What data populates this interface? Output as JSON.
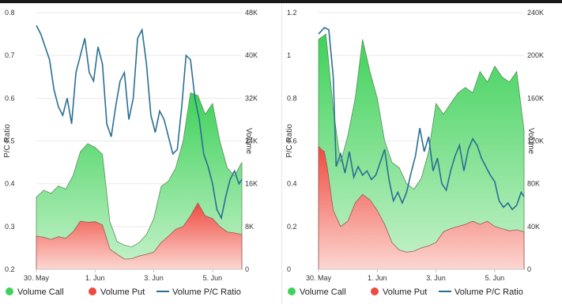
{
  "colors": {
    "call_top": "#3fd15a",
    "call_bottom": "#c6f2cb",
    "put_top": "#ee4a3f",
    "put_bottom": "#fcd7d2",
    "ratio_line": "#2a6f93"
  },
  "legend": {
    "call": "Volume Call",
    "put": "Volume Put",
    "ratio": "Volume P/C Ratio"
  },
  "chart_data": [
    {
      "type": "area",
      "title": "",
      "xlabel": "",
      "ylabel_left": "P/C Ratio",
      "ylabel_right": "Volume",
      "x_ticks": [
        "30. May",
        "1. Jun",
        "3. Jun",
        "5. Jun"
      ],
      "y_left_ticks": [
        "0.2",
        "0.3",
        "0.4",
        "0.5",
        "0.6",
        "0.7",
        "0.8"
      ],
      "y_right_ticks": [
        "0",
        "8K",
        "16K",
        "24K",
        "32K",
        "40K",
        "48K"
      ],
      "ylim_left": [
        0.2,
        0.8
      ],
      "ylim_right": [
        0,
        48000
      ],
      "x_range_days": [
        0,
        7.0
      ],
      "series": [
        {
          "name": "Volume Call",
          "points": [
            [
              0,
              13500
            ],
            [
              0.25,
              14800
            ],
            [
              0.5,
              14200
            ],
            [
              0.75,
              15600
            ],
            [
              1.0,
              15000
            ],
            [
              1.25,
              17500
            ],
            [
              1.5,
              22000
            ],
            [
              1.75,
              23500
            ],
            [
              2.0,
              22800
            ],
            [
              2.25,
              21500
            ],
            [
              2.5,
              9000
            ],
            [
              2.75,
              5200
            ],
            [
              3.0,
              4500
            ],
            [
              3.25,
              4200
            ],
            [
              3.5,
              5000
            ],
            [
              3.75,
              6500
            ],
            [
              4.0,
              9500
            ],
            [
              4.25,
              15500
            ],
            [
              4.5,
              16500
            ],
            [
              4.75,
              19000
            ],
            [
              5.0,
              24000
            ],
            [
              5.25,
              33000
            ],
            [
              5.5,
              32500
            ],
            [
              5.75,
              29000
            ],
            [
              6.0,
              31000
            ],
            [
              6.25,
              24000
            ],
            [
              6.5,
              19000
            ],
            [
              6.75,
              17500
            ],
            [
              7.0,
              20000
            ]
          ]
        },
        {
          "name": "Volume Put",
          "points": [
            [
              0,
              6200
            ],
            [
              0.25,
              6000
            ],
            [
              0.5,
              5600
            ],
            [
              0.75,
              6100
            ],
            [
              1.0,
              5800
            ],
            [
              1.25,
              7000
            ],
            [
              1.5,
              9000
            ],
            [
              1.75,
              8800
            ],
            [
              2.0,
              8900
            ],
            [
              2.25,
              8300
            ],
            [
              2.5,
              3800
            ],
            [
              2.75,
              2800
            ],
            [
              3.0,
              1900
            ],
            [
              3.25,
              2000
            ],
            [
              3.5,
              2500
            ],
            [
              3.75,
              2800
            ],
            [
              4.0,
              3200
            ],
            [
              4.25,
              5000
            ],
            [
              4.5,
              6200
            ],
            [
              4.75,
              7500
            ],
            [
              5.0,
              8000
            ],
            [
              5.25,
              10000
            ],
            [
              5.5,
              12400
            ],
            [
              5.75,
              10000
            ],
            [
              6.0,
              9500
            ],
            [
              6.25,
              8000
            ],
            [
              6.5,
              7000
            ],
            [
              6.75,
              6800
            ],
            [
              7.0,
              6500
            ]
          ]
        },
        {
          "name": "Volume P/C Ratio",
          "points": [
            [
              0,
              0.77
            ],
            [
              0.15,
              0.75
            ],
            [
              0.3,
              0.72
            ],
            [
              0.45,
              0.69
            ],
            [
              0.6,
              0.62
            ],
            [
              0.75,
              0.58
            ],
            [
              0.9,
              0.56
            ],
            [
              1.05,
              0.6
            ],
            [
              1.2,
              0.54
            ],
            [
              1.35,
              0.66
            ],
            [
              1.5,
              0.7
            ],
            [
              1.65,
              0.74
            ],
            [
              1.8,
              0.66
            ],
            [
              1.95,
              0.64
            ],
            [
              2.1,
              0.72
            ],
            [
              2.25,
              0.68
            ],
            [
              2.4,
              0.54
            ],
            [
              2.55,
              0.51
            ],
            [
              2.7,
              0.58
            ],
            [
              2.85,
              0.64
            ],
            [
              3.0,
              0.66
            ],
            [
              3.15,
              0.55
            ],
            [
              3.3,
              0.6
            ],
            [
              3.45,
              0.74
            ],
            [
              3.6,
              0.76
            ],
            [
              3.75,
              0.68
            ],
            [
              3.9,
              0.56
            ],
            [
              4.05,
              0.52
            ],
            [
              4.2,
              0.57
            ],
            [
              4.35,
              0.55
            ],
            [
              4.5,
              0.51
            ],
            [
              4.65,
              0.47
            ],
            [
              4.8,
              0.48
            ],
            [
              4.95,
              0.58
            ],
            [
              5.1,
              0.7
            ],
            [
              5.25,
              0.69
            ],
            [
              5.4,
              0.6
            ],
            [
              5.55,
              0.55
            ],
            [
              5.7,
              0.47
            ],
            [
              5.85,
              0.44
            ],
            [
              6.0,
              0.4
            ],
            [
              6.15,
              0.34
            ],
            [
              6.3,
              0.32
            ],
            [
              6.45,
              0.37
            ],
            [
              6.6,
              0.41
            ],
            [
              6.75,
              0.43
            ],
            [
              6.9,
              0.4
            ],
            [
              7.0,
              0.41
            ]
          ]
        }
      ]
    },
    {
      "type": "area",
      "title": "",
      "xlabel": "",
      "ylabel_left": "P/C Ratio",
      "ylabel_right": "Volume",
      "x_ticks": [
        "30. May",
        "1. Jun",
        "3. Jun",
        "5. Jun"
      ],
      "y_left_ticks": [
        "0",
        "0.2",
        "0.4",
        "0.6",
        "0.8",
        "1",
        "1.2"
      ],
      "y_right_ticks": [
        "0",
        "40K",
        "80K",
        "120K",
        "160K",
        "200K",
        "240K"
      ],
      "ylim_left": [
        0,
        1.2
      ],
      "ylim_right": [
        0,
        240000
      ],
      "x_range_days": [
        0,
        7.0
      ],
      "series": [
        {
          "name": "Volume Call",
          "points": [
            [
              0,
              215000
            ],
            [
              0.25,
              220000
            ],
            [
              0.5,
              150000
            ],
            [
              0.75,
              100000
            ],
            [
              1.0,
              125000
            ],
            [
              1.25,
              160000
            ],
            [
              1.5,
              215000
            ],
            [
              1.75,
              185000
            ],
            [
              2.0,
              160000
            ],
            [
              2.25,
              120000
            ],
            [
              2.5,
              100000
            ],
            [
              2.75,
              95000
            ],
            [
              3.0,
              80000
            ],
            [
              3.25,
              75000
            ],
            [
              3.5,
              85000
            ],
            [
              3.75,
              110000
            ],
            [
              4.0,
              155000
            ],
            [
              4.25,
              145000
            ],
            [
              4.5,
              155000
            ],
            [
              4.75,
              165000
            ],
            [
              5.0,
              170000
            ],
            [
              5.25,
              165000
            ],
            [
              5.5,
              185000
            ],
            [
              5.75,
              175000
            ],
            [
              6.0,
              190000
            ],
            [
              6.25,
              180000
            ],
            [
              6.5,
              175000
            ],
            [
              6.75,
              185000
            ],
            [
              7.0,
              130000
            ]
          ]
        },
        {
          "name": "Volume Put",
          "points": [
            [
              0,
              115000
            ],
            [
              0.1,
              112000
            ],
            [
              0.2,
              110000
            ],
            [
              0.3,
              95000
            ],
            [
              0.5,
              55000
            ],
            [
              0.75,
              40000
            ],
            [
              1.0,
              45000
            ],
            [
              1.25,
              62000
            ],
            [
              1.5,
              70000
            ],
            [
              1.75,
              65000
            ],
            [
              2.0,
              55000
            ],
            [
              2.25,
              42000
            ],
            [
              2.5,
              25000
            ],
            [
              2.75,
              18000
            ],
            [
              3.0,
              16000
            ],
            [
              3.25,
              17000
            ],
            [
              3.5,
              20000
            ],
            [
              3.75,
              22000
            ],
            [
              4.0,
              25000
            ],
            [
              4.25,
              35000
            ],
            [
              4.5,
              38000
            ],
            [
              4.75,
              40000
            ],
            [
              5.0,
              42000
            ],
            [
              5.25,
              45000
            ],
            [
              5.5,
              42000
            ],
            [
              5.75,
              45000
            ],
            [
              6.0,
              40000
            ],
            [
              6.25,
              38000
            ],
            [
              6.5,
              36000
            ],
            [
              6.75,
              37000
            ],
            [
              7.0,
              35000
            ]
          ]
        },
        {
          "name": "Volume P/C Ratio",
          "points": [
            [
              0,
              1.1
            ],
            [
              0.2,
              1.13
            ],
            [
              0.35,
              1.12
            ],
            [
              0.5,
              0.9
            ],
            [
              0.6,
              0.48
            ],
            [
              0.75,
              0.54
            ],
            [
              0.9,
              0.45
            ],
            [
              1.05,
              0.55
            ],
            [
              1.2,
              0.43
            ],
            [
              1.35,
              0.48
            ],
            [
              1.5,
              0.44
            ],
            [
              1.65,
              0.46
            ],
            [
              1.8,
              0.42
            ],
            [
              1.95,
              0.44
            ],
            [
              2.1,
              0.5
            ],
            [
              2.25,
              0.56
            ],
            [
              2.4,
              0.42
            ],
            [
              2.55,
              0.32
            ],
            [
              2.7,
              0.36
            ],
            [
              2.85,
              0.31
            ],
            [
              3.0,
              0.36
            ],
            [
              3.15,
              0.45
            ],
            [
              3.3,
              0.53
            ],
            [
              3.45,
              0.66
            ],
            [
              3.6,
              0.55
            ],
            [
              3.75,
              0.62
            ],
            [
              3.9,
              0.46
            ],
            [
              4.05,
              0.52
            ],
            [
              4.2,
              0.4
            ],
            [
              4.35,
              0.37
            ],
            [
              4.5,
              0.46
            ],
            [
              4.65,
              0.53
            ],
            [
              4.8,
              0.58
            ],
            [
              4.95,
              0.46
            ],
            [
              5.1,
              0.56
            ],
            [
              5.25,
              0.61
            ],
            [
              5.4,
              0.58
            ],
            [
              5.55,
              0.52
            ],
            [
              5.7,
              0.48
            ],
            [
              5.85,
              0.44
            ],
            [
              6.0,
              0.41
            ],
            [
              6.15,
              0.32
            ],
            [
              6.3,
              0.29
            ],
            [
              6.45,
              0.31
            ],
            [
              6.6,
              0.28
            ],
            [
              6.75,
              0.3
            ],
            [
              6.9,
              0.36
            ],
            [
              7.0,
              0.34
            ]
          ]
        }
      ]
    }
  ]
}
